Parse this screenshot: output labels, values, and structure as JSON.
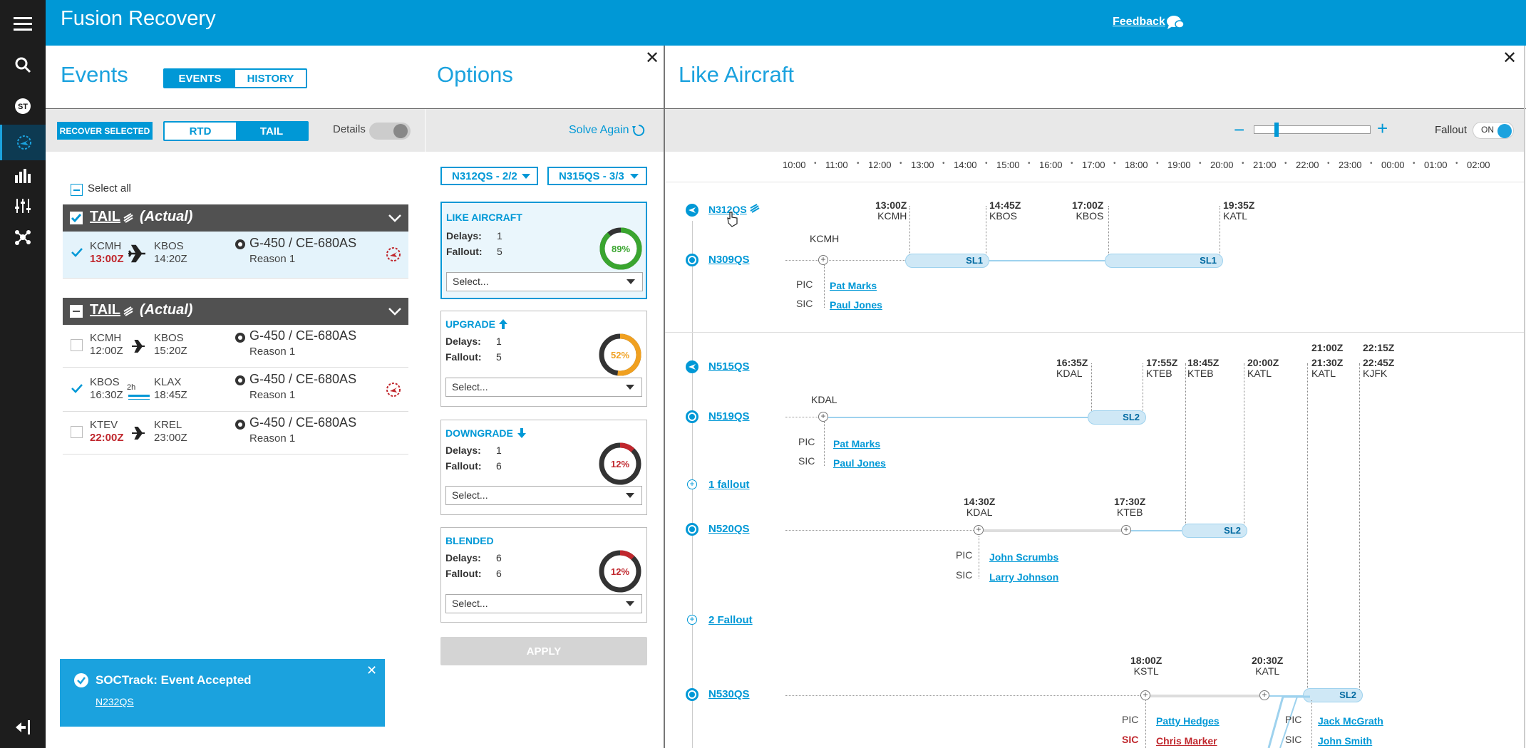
{
  "app": {
    "title": "Fusion Recovery",
    "feedback": "Feedback"
  },
  "rail": [
    "menu-icon",
    "search-icon",
    "st-icon",
    "recovery-icon",
    "chart-icon",
    "sliders-icon",
    "network-icon",
    "logout-icon"
  ],
  "events_panel": {
    "title": "Events",
    "tabs": [
      "EVENTS",
      "HISTORY"
    ],
    "recover_selected": "RECOVER SELECTED",
    "mode_tabs": [
      "RTD",
      "TAIL"
    ],
    "details_label": "Details",
    "select_all": "Select all",
    "groups": [
      {
        "tail": "TAIL",
        "actual": "(Actual)",
        "flights": [
          {
            "dep": "KCMH",
            "dep_time": "13:00Z",
            "arr": "KBOS",
            "arr_time": "14:20Z",
            "aircraft": "G-450 / CE-680AS",
            "reason": "Reason 1"
          }
        ]
      },
      {
        "tail": "TAIL",
        "actual": "(Actual)",
        "flights": [
          {
            "dep": "KCMH",
            "dep_time": "12:00Z",
            "arr": "KBOS",
            "arr_time": "15:20Z",
            "aircraft": "G-450 / CE-680AS",
            "reason": "Reason 1"
          },
          {
            "dep": "KBOS",
            "dep_time": "16:30Z",
            "arr": "KLAX",
            "arr_time": "18:45Z",
            "duration": "2h",
            "aircraft": "G-450 / CE-680AS",
            "reason": "Reason 1"
          },
          {
            "dep": "KTEV",
            "dep_time": "22:00Z",
            "arr": "KREL",
            "arr_time": "23:00Z",
            "aircraft": "G-450 / CE-680AS",
            "reason": "Reason 1"
          }
        ]
      }
    ]
  },
  "options_panel": {
    "title": "Options",
    "solve_again": "Solve Again",
    "dropdowns": [
      "N312QS - 2/2",
      "N315QS - 3/3"
    ],
    "delays_label": "Delays:",
    "fallout_label": "Fallout:",
    "select_placeholder": "Select...",
    "cards": [
      {
        "title": "LIKE AIRCRAFT",
        "delays": "1",
        "fallout": "5",
        "pct_label": "89%",
        "pct": 89,
        "color": "#3aa52f"
      },
      {
        "title": "UPGRADE",
        "delays": "1",
        "fallout": "5",
        "pct_label": "52%",
        "pct": 52,
        "color": "#f0a020"
      },
      {
        "title": "DOWNGRADE",
        "delays": "1",
        "fallout": "6",
        "pct_label": "12%",
        "pct": 12,
        "color": "#c0272d"
      },
      {
        "title": "BLENDED",
        "delays": "6",
        "fallout": "6",
        "pct_label": "12%",
        "pct": 12,
        "color": "#c0272d"
      }
    ],
    "apply": "APPLY"
  },
  "toast": {
    "title": "SOCTrack: Event Accepted",
    "link": "N232QS"
  },
  "like_panel": {
    "title": "Like Aircraft",
    "fallout_label": "Fallout",
    "fallout_toggle": "ON",
    "ticks": [
      "10:00",
      "11:00",
      "12:00",
      "13:00",
      "14:00",
      "15:00",
      "16:00",
      "17:00",
      "18:00",
      "19:00",
      "20:00",
      "21:00",
      "22:00",
      "23:00",
      "00:00",
      "01:00",
      "02:00"
    ],
    "pic": "PIC",
    "sic": "SIC",
    "block1": {
      "event_tail": "N312QS",
      "recovery_tail": "N309QS",
      "base": "KCMH",
      "times": [
        {
          "t": "13:00Z",
          "a": "KCMH"
        },
        {
          "t": "14:45Z",
          "a": "KBOS"
        },
        {
          "t": "17:00Z",
          "a": "KBOS"
        },
        {
          "t": "19:35Z",
          "a": "KATL"
        }
      ],
      "seg_labels": [
        "SL1",
        "SL1"
      ],
      "pic_name": "Pat Marks",
      "sic_name": "Paul Jones"
    },
    "block2": {
      "event_tail": "N515QS",
      "recovery_tail": "N519QS",
      "base": "KDAL",
      "times": [
        {
          "t": "16:35Z",
          "a": "KDAL"
        },
        {
          "t": "17:55Z",
          "a": "KTEB"
        },
        {
          "t": "18:45Z",
          "a": "KTEB"
        },
        {
          "t": "20:00Z",
          "a": "KATL"
        },
        {
          "t1": "21:00Z",
          "t": "21:30Z",
          "a": "KATL"
        },
        {
          "t1": "22:15Z",
          "t": "22:45Z",
          "a": "KJFK"
        }
      ],
      "seg_label": "SL2",
      "pic_name": "Pat Marks",
      "sic_name": "Paul Jones",
      "fallout1": "1 fallout",
      "tail2": "N520QS",
      "times2": [
        {
          "t": "14:30Z",
          "a": "KDAL"
        },
        {
          "t": "17:30Z",
          "a": "KTEB"
        }
      ],
      "seg_label2": "SL2",
      "pic2": "John Scrumbs",
      "sic2": "Larry Johnson",
      "fallout2": "2 Fallout",
      "tail3": "N530QS",
      "times3": [
        {
          "t": "18:00Z",
          "a": "KSTL"
        },
        {
          "t": "20:30Z",
          "a": "KATL"
        }
      ],
      "seg_label3": "SL2",
      "pic3": "Patty Hedges",
      "sic3": "Chris Marker",
      "pic4": "Jack McGrath",
      "sic4": "John Smith"
    }
  }
}
